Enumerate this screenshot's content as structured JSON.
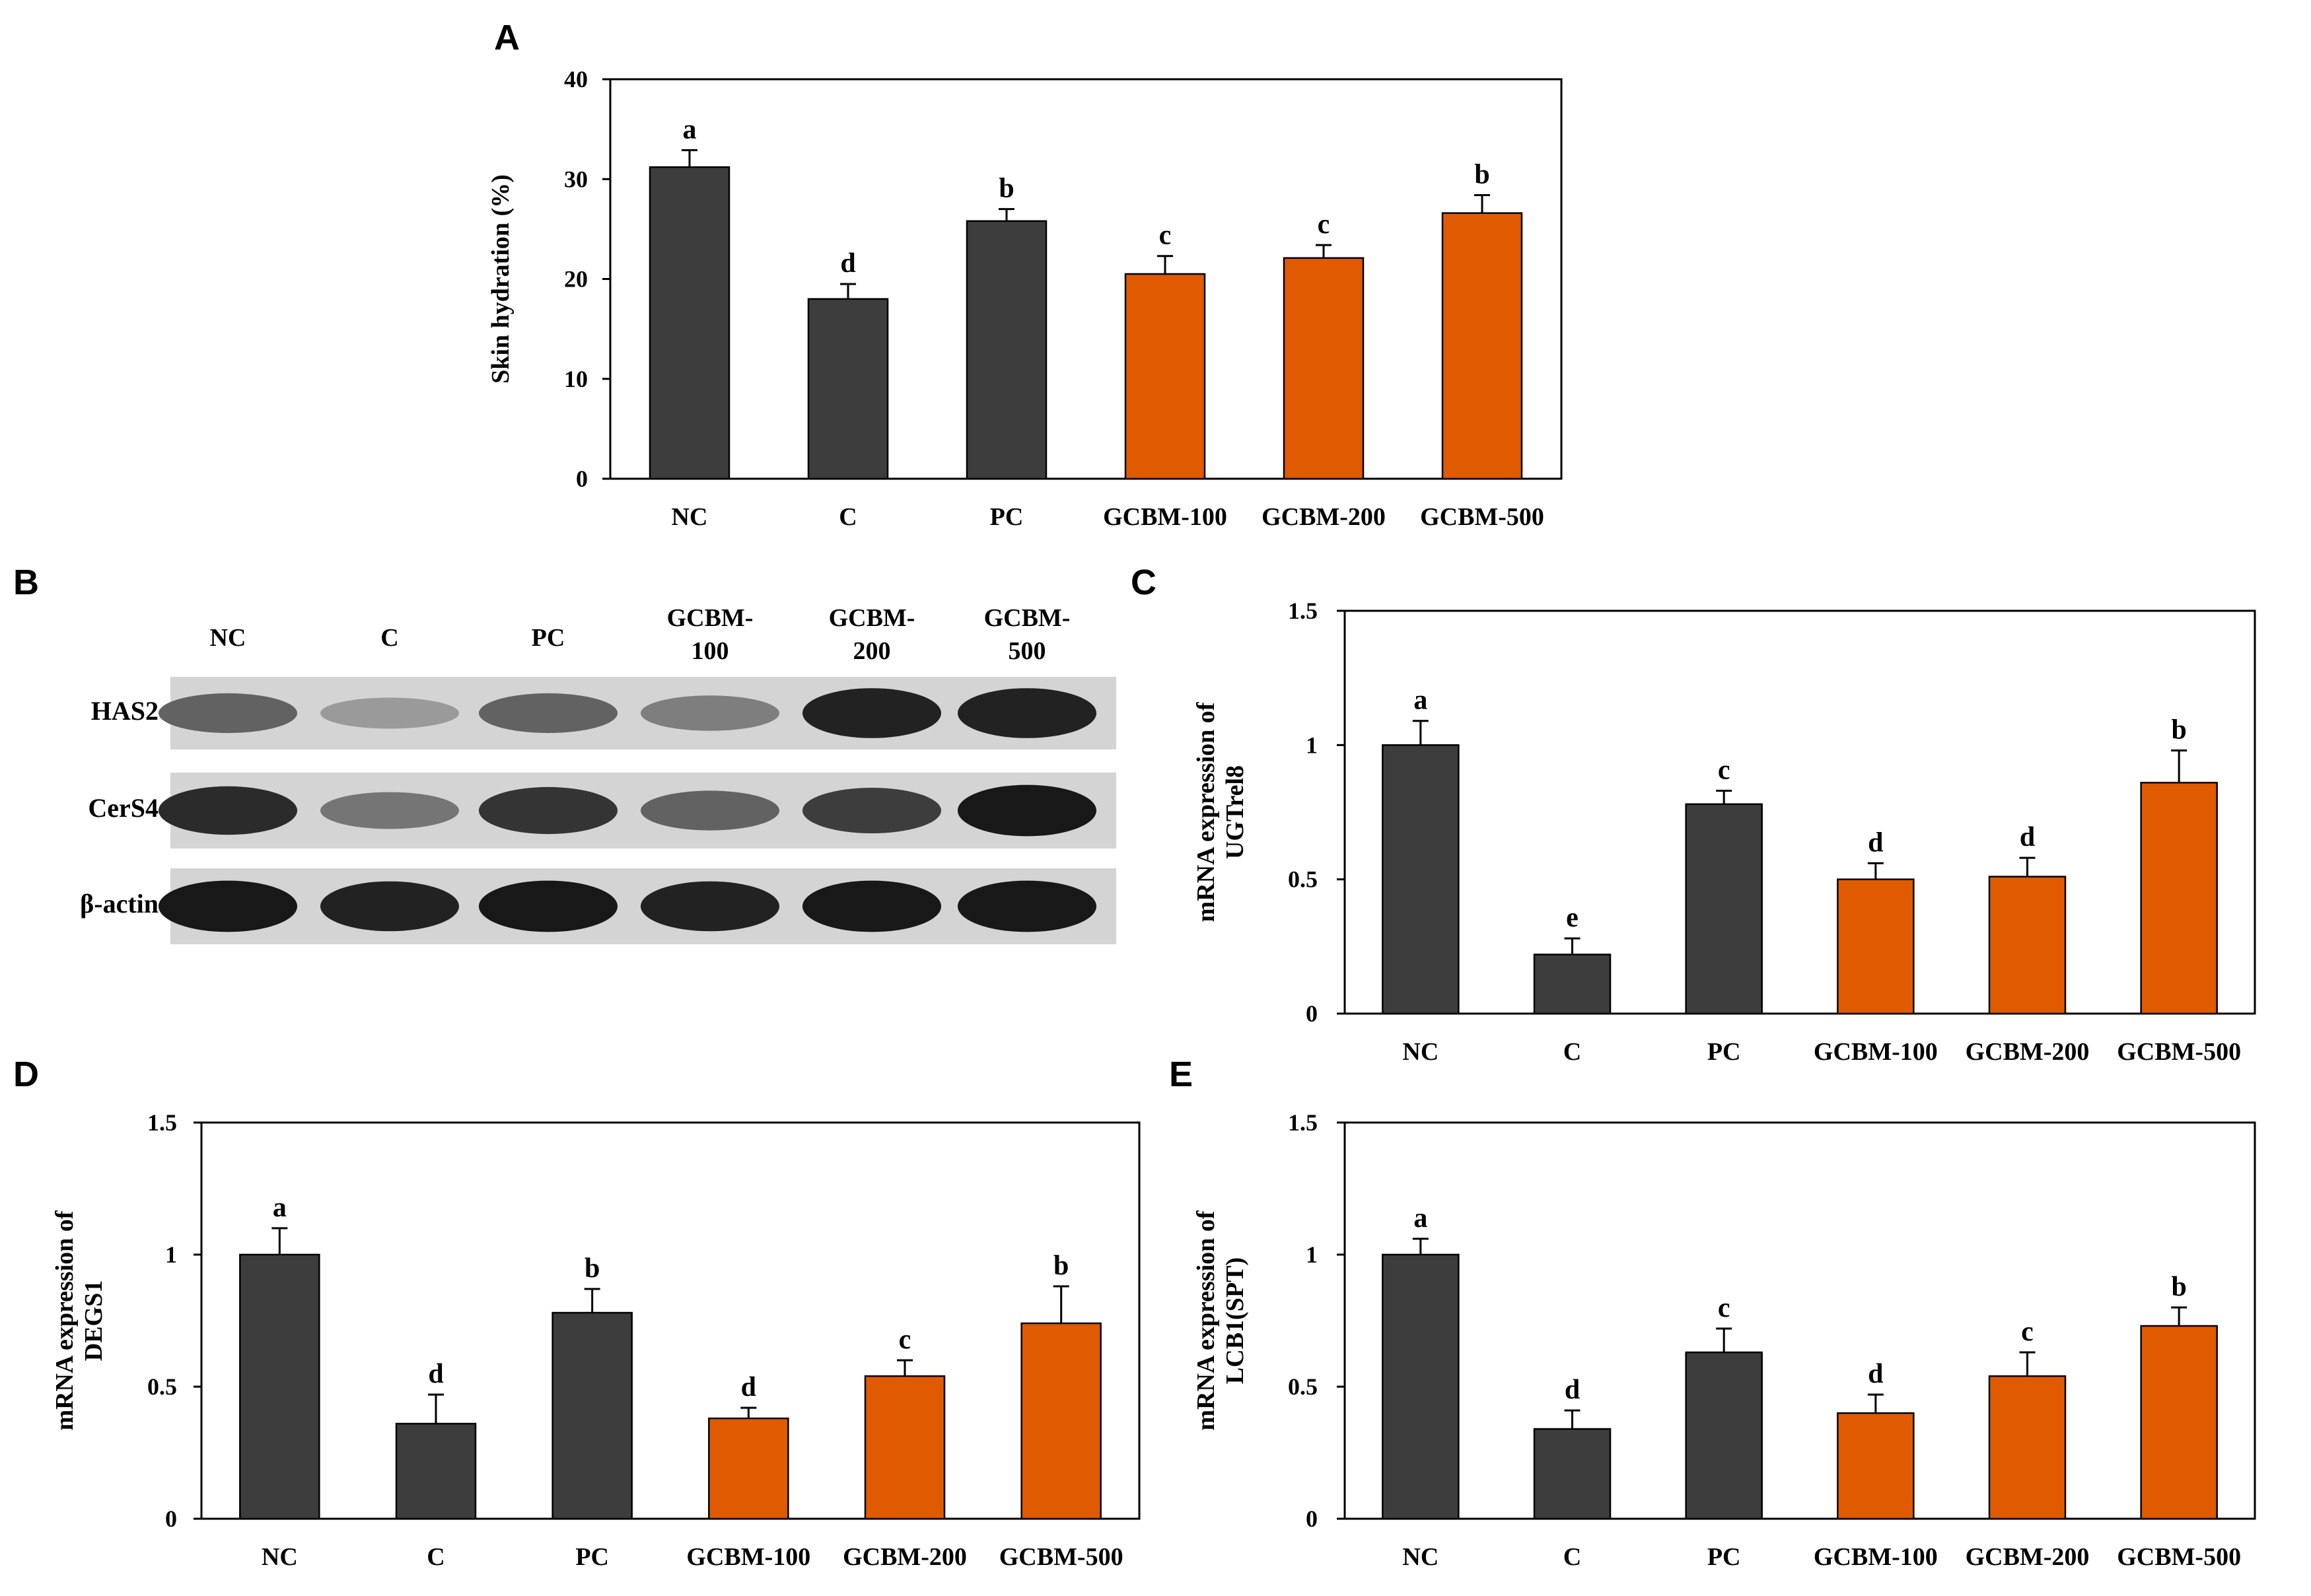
{
  "colors": {
    "control": "#3d3d3d",
    "treatment": "#e05a00",
    "axis": "#000000"
  },
  "figure_labels": {
    "A": "A",
    "B": "B",
    "C": "C",
    "D": "D",
    "E": "E"
  },
  "western_blot": {
    "lanes": [
      {
        "top": "NC",
        "bottom": ""
      },
      {
        "top": "C",
        "bottom": ""
      },
      {
        "top": "PC",
        "bottom": ""
      },
      {
        "top": "GCBM-",
        "bottom": "100"
      },
      {
        "top": "GCBM-",
        "bottom": "200"
      },
      {
        "top": "GCBM-",
        "bottom": "500"
      }
    ],
    "proteins": [
      "HAS2",
      "CerS4",
      "β-actin"
    ],
    "band_intensity": [
      [
        0.55,
        0.25,
        0.55,
        0.4,
        0.9,
        0.9
      ],
      [
        0.85,
        0.45,
        0.8,
        0.55,
        0.75,
        0.95
      ],
      [
        0.95,
        0.9,
        0.95,
        0.9,
        0.95,
        0.95
      ]
    ]
  },
  "chart_data": [
    {
      "id": "A",
      "type": "bar",
      "title": "",
      "xlabel": "",
      "ylabel": "Skin hydration (%)",
      "ylim": [
        0,
        40
      ],
      "yticks": [
        "0",
        "10",
        "20",
        "30",
        "40"
      ],
      "ytick_values": [
        0,
        10,
        20,
        30,
        40
      ],
      "categories": [
        "NC",
        "C",
        "PC",
        "GCBM-100",
        "GCBM-200",
        "GCBM-500"
      ],
      "values": [
        31.2,
        18.0,
        25.8,
        20.5,
        22.1,
        26.6
      ],
      "errors": [
        1.7,
        1.5,
        1.2,
        1.8,
        1.3,
        1.8
      ],
      "significance": [
        "a",
        "d",
        "b",
        "c",
        "c",
        "b"
      ],
      "bar_colors": [
        "control",
        "control",
        "control",
        "treatment",
        "treatment",
        "treatment"
      ]
    },
    {
      "id": "C",
      "type": "bar",
      "title": "",
      "xlabel": "",
      "ylabel_line1": "mRNA expression of",
      "ylabel_line2": "UGTrel8",
      "ylim": [
        0,
        1.5
      ],
      "yticks": [
        "0",
        "0.5",
        "1",
        "1.5"
      ],
      "ytick_values": [
        0,
        0.5,
        1,
        1.5
      ],
      "categories": [
        "NC",
        "C",
        "PC",
        "GCBM-100",
        "GCBM-200",
        "GCBM-500"
      ],
      "values": [
        1.0,
        0.22,
        0.78,
        0.5,
        0.51,
        0.86
      ],
      "errors": [
        0.09,
        0.06,
        0.05,
        0.06,
        0.07,
        0.12
      ],
      "significance": [
        "a",
        "e",
        "c",
        "d",
        "d",
        "b"
      ],
      "bar_colors": [
        "control",
        "control",
        "control",
        "treatment",
        "treatment",
        "treatment"
      ]
    },
    {
      "id": "D",
      "type": "bar",
      "title": "",
      "xlabel": "",
      "ylabel_line1": "mRNA expression of",
      "ylabel_line2": "DEGS1",
      "ylim": [
        0,
        1.5
      ],
      "yticks": [
        "0",
        "0.5",
        "1",
        "1.5"
      ],
      "ytick_values": [
        0,
        0.5,
        1,
        1.5
      ],
      "categories": [
        "NC",
        "C",
        "PC",
        "GCBM-100",
        "GCBM-200",
        "GCBM-500"
      ],
      "values": [
        1.0,
        0.36,
        0.78,
        0.38,
        0.54,
        0.74
      ],
      "errors": [
        0.1,
        0.11,
        0.09,
        0.04,
        0.06,
        0.14
      ],
      "significance": [
        "a",
        "d",
        "b",
        "d",
        "c",
        "b"
      ],
      "bar_colors": [
        "control",
        "control",
        "control",
        "treatment",
        "treatment",
        "treatment"
      ]
    },
    {
      "id": "E",
      "type": "bar",
      "title": "",
      "xlabel": "",
      "ylabel_line1": "mRNA expression of",
      "ylabel_line2": "LCB1(SPT)",
      "ylim": [
        0,
        1.5
      ],
      "yticks": [
        "0",
        "0.5",
        "1",
        "1.5"
      ],
      "ytick_values": [
        0,
        0.5,
        1,
        1.5
      ],
      "categories": [
        "NC",
        "C",
        "PC",
        "GCBM-100",
        "GCBM-200",
        "GCBM-500"
      ],
      "values": [
        1.0,
        0.34,
        0.63,
        0.4,
        0.54,
        0.73
      ],
      "errors": [
        0.06,
        0.07,
        0.09,
        0.07,
        0.09,
        0.07
      ],
      "significance": [
        "a",
        "d",
        "c",
        "d",
        "c",
        "b"
      ],
      "bar_colors": [
        "control",
        "control",
        "control",
        "treatment",
        "treatment",
        "treatment"
      ]
    }
  ]
}
